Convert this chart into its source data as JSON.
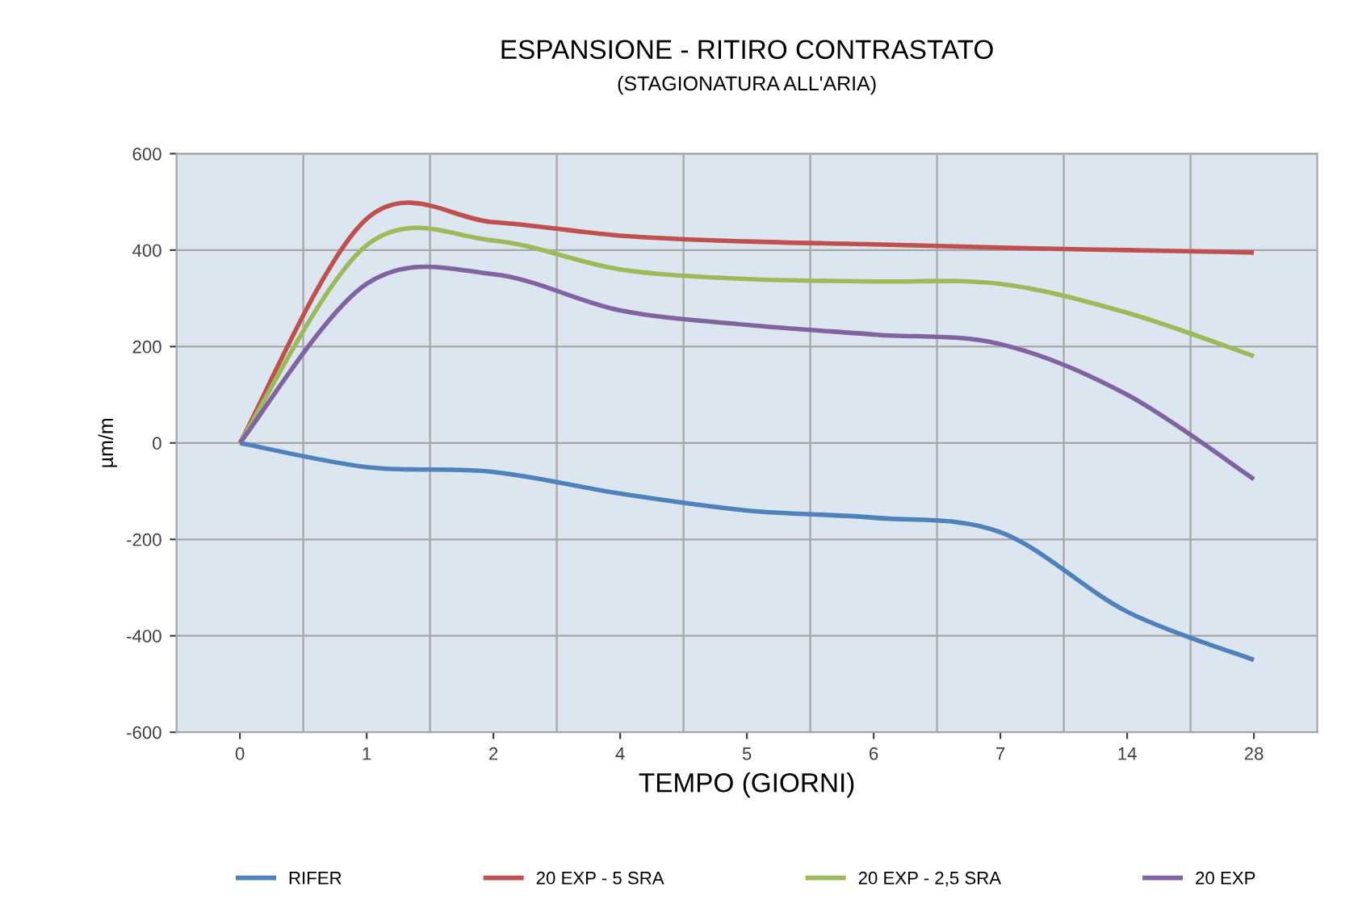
{
  "chart_data": {
    "type": "line",
    "title": "ESPANSIONE - RITIRO CONTRASTATO",
    "subtitle": "(STAGIONATURA ALL'ARIA)",
    "xlabel": "TEMPO (GIORNI)",
    "ylabel": "µm/m",
    "categories": [
      "0",
      "1",
      "2",
      "4",
      "5",
      "6",
      "7",
      "14",
      "28"
    ],
    "series": [
      {
        "name": "RIFER",
        "color": "#4f81bd",
        "values": [
          0,
          -50,
          -60,
          -105,
          -140,
          -155,
          -185,
          -350,
          -450
        ]
      },
      {
        "name": "20 EXP - 5 SRA",
        "color": "#c0504d",
        "values": [
          0,
          465,
          458,
          430,
          418,
          412,
          405,
          400,
          395
        ]
      },
      {
        "name": "20 EXP - 2,5 SRA",
        "color": "#9bbb59",
        "values": [
          0,
          410,
          420,
          360,
          340,
          335,
          330,
          270,
          180
        ]
      },
      {
        "name": "20 EXP",
        "color": "#8064a2",
        "values": [
          0,
          330,
          350,
          275,
          245,
          225,
          205,
          100,
          -75
        ]
      }
    ],
    "ylim": [
      -600,
      600
    ],
    "yticks": [
      -600,
      -400,
      -200,
      0,
      200,
      400,
      600
    ],
    "grid": true,
    "legend": "bottom",
    "marker": "none",
    "line_style": "solid"
  }
}
